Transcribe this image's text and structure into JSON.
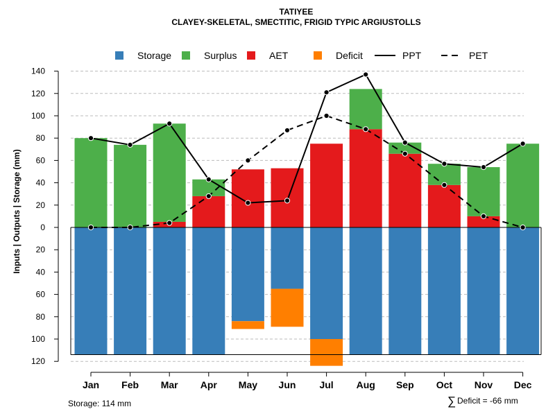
{
  "chart_data": {
    "type": "bar",
    "title": "TATIYEE",
    "subtitle": "CLAYEY-SKELETAL, SMECTITIC, FRIGID TYPIC ARGIUSTOLLS",
    "ylabel": "Inputs | Outputs | Storage    (mm)",
    "ylim": [
      -120,
      140
    ],
    "yticks": [
      140,
      120,
      100,
      80,
      60,
      40,
      20,
      0,
      -20,
      -40,
      -60,
      -80,
      -100,
      -120
    ],
    "ytick_labels": [
      "140",
      "120",
      "100",
      "80",
      "60",
      "40",
      "20",
      "0",
      "20",
      "40",
      "60",
      "80",
      "100",
      "120"
    ],
    "grid": true,
    "legend_position": "top",
    "categories": [
      "Jan",
      "Feb",
      "Mar",
      "Apr",
      "May",
      "Jun",
      "Jul",
      "Aug",
      "Sep",
      "Oct",
      "Nov",
      "Dec"
    ],
    "series": [
      {
        "name": "Storage",
        "kind": "bar-below",
        "color": "#377EB8",
        "values": [
          114,
          114,
          114,
          114,
          84,
          55,
          100,
          114,
          114,
          114,
          114,
          114
        ]
      },
      {
        "name": "Surplus",
        "kind": "bar-stack",
        "color": "#4DAF4A",
        "values": [
          80,
          74,
          88,
          15,
          0,
          0,
          0,
          36,
          10,
          19,
          44,
          75
        ]
      },
      {
        "name": "AET",
        "kind": "bar-stack",
        "color": "#E41A1C",
        "values": [
          0,
          0,
          5,
          28,
          52,
          53,
          75,
          88,
          66,
          38,
          10,
          0
        ]
      },
      {
        "name": "Deficit",
        "kind": "bar-below-stack",
        "color": "#FF7F00",
        "values": [
          0,
          0,
          0,
          0,
          -7,
          -34,
          -24,
          0,
          0,
          0,
          0,
          0
        ]
      },
      {
        "name": "PPT",
        "kind": "line",
        "color": "#000000",
        "dash": "solid",
        "values": [
          80,
          74,
          93,
          43,
          22,
          24,
          121,
          137,
          76,
          57,
          54,
          75
        ]
      },
      {
        "name": "PET",
        "kind": "line",
        "color": "#000000",
        "dash": "dashed",
        "values": [
          0,
          0,
          4,
          28,
          60,
          87,
          100,
          88,
          66,
          38,
          10,
          0
        ]
      }
    ],
    "storage_capacity": 114,
    "annotations": {
      "storage": "Storage: 114 mm",
      "deficit_symbol": "∑",
      "deficit": "Deficit = -66 mm"
    }
  }
}
